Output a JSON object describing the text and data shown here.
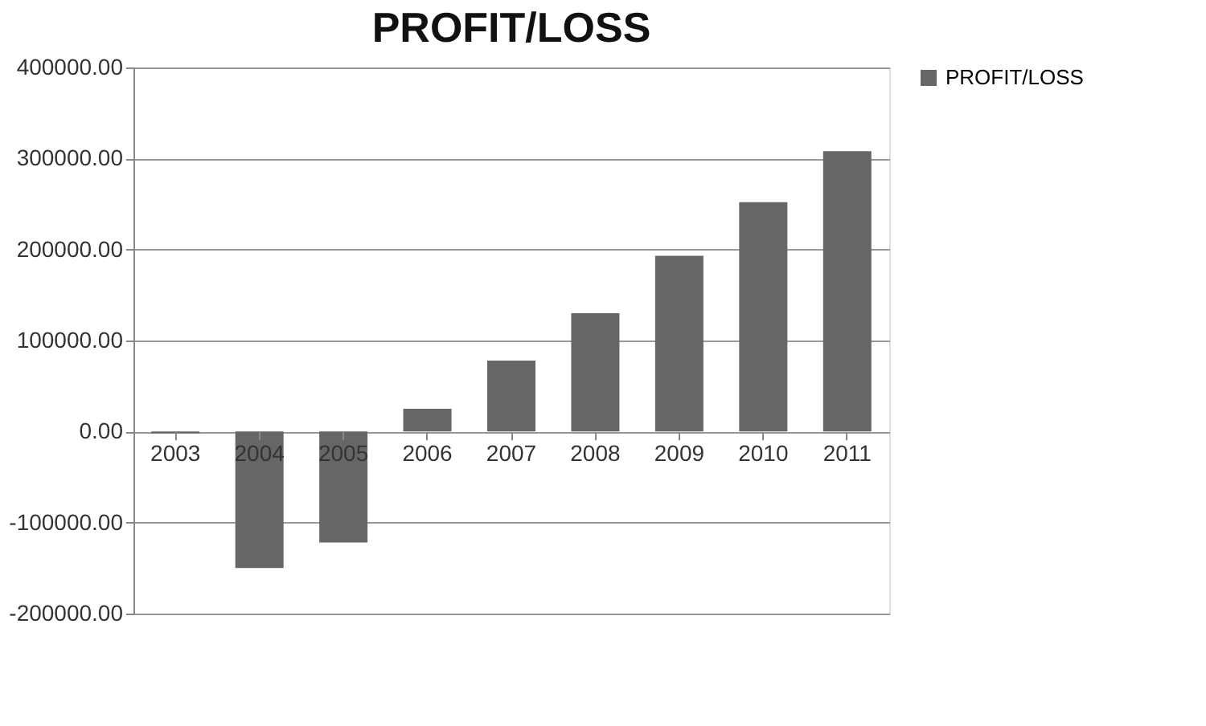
{
  "chart_data": {
    "type": "bar",
    "title": "PROFIT/LOSS",
    "categories": [
      "2003",
      "2004",
      "2005",
      "2006",
      "2007",
      "2008",
      "2009",
      "2010",
      "2011"
    ],
    "series": [
      {
        "name": "PROFIT/LOSS",
        "color": "#666666",
        "values": [
          -2000,
          -150000,
          -122000,
          25000,
          78000,
          130000,
          193000,
          252000,
          308000
        ]
      }
    ],
    "ylim": [
      -200000,
      400000
    ],
    "yticks": [
      {
        "value": -200000,
        "label": "-200000.00"
      },
      {
        "value": -100000,
        "label": "-100000.00"
      },
      {
        "value": 0,
        "label": "0.00"
      },
      {
        "value": 100000,
        "label": "100000.00"
      },
      {
        "value": 200000,
        "label": "200000.00"
      },
      {
        "value": 300000,
        "label": "300000.00"
      },
      {
        "value": 400000,
        "label": "400000.00"
      }
    ],
    "grid": "y",
    "legend": "right"
  }
}
